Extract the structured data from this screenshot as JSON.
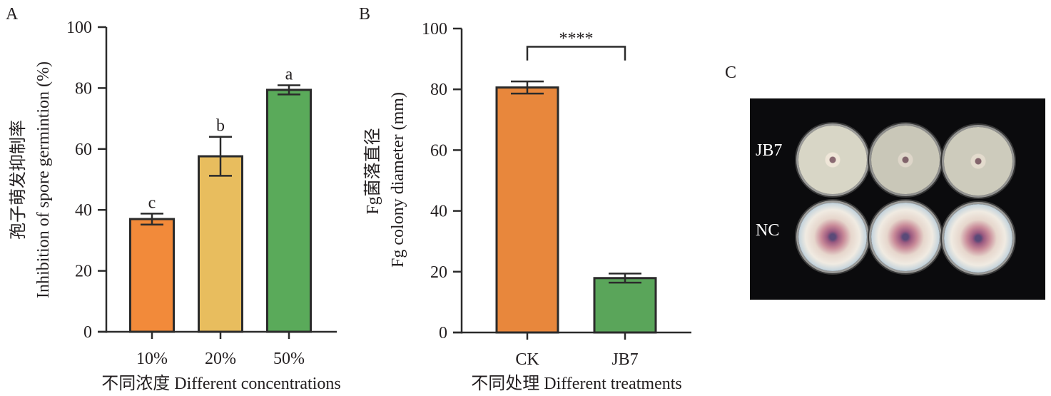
{
  "panels": {
    "A": {
      "letter": "A"
    },
    "B": {
      "letter": "B"
    },
    "C": {
      "letter": "C",
      "row_labels": [
        "JB7",
        "NC"
      ]
    }
  },
  "chart_data": [
    {
      "type": "bar",
      "panel": "A",
      "title": "",
      "categories": [
        "10%",
        "20%",
        "50%"
      ],
      "values": [
        37.0,
        57.6,
        79.4
      ],
      "errors": [
        1.8,
        6.4,
        1.5
      ],
      "significance_letters": [
        "c",
        "b",
        "a"
      ],
      "bar_colors": [
        "#f28a3a",
        "#e8bd5e",
        "#5aaa5a"
      ],
      "xlabel": "不同浓度 Different concentrations",
      "ylabel_cn": "孢子萌发抑制率",
      "ylabel_en": "Inhibition of spore germintion (%)",
      "ylim": [
        0,
        100
      ],
      "yticks": [
        0,
        20,
        40,
        60,
        80,
        100
      ],
      "grid": false,
      "legend": "none"
    },
    {
      "type": "bar",
      "panel": "B",
      "title": "",
      "categories": [
        "CK",
        "JB7"
      ],
      "values": [
        80.6,
        17.9
      ],
      "errors": [
        2.0,
        1.5
      ],
      "bar_colors": [
        "#e8873c",
        "#5aa55a"
      ],
      "significance_bracket": {
        "from": "CK",
        "to": "JB7",
        "label": "****"
      },
      "xlabel": "不同处理 Different treatments",
      "ylabel_cn": "Fg菌落直径",
      "ylabel_en": "Fg colony diameter (mm)",
      "ylim": [
        0,
        100
      ],
      "yticks": [
        0,
        20,
        40,
        60,
        80,
        100
      ],
      "grid": false,
      "legend": "none"
    }
  ]
}
